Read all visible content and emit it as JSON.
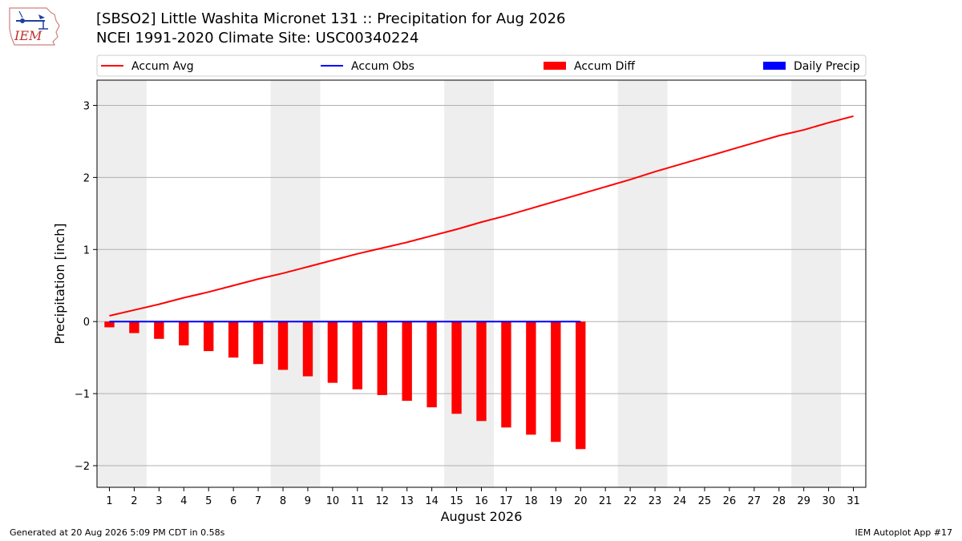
{
  "header": {
    "title_line1": "[SBSO2] Little Washita Micronet 131 :: Precipitation for Aug 2026",
    "title_line2": "NCEI 1991-2020 Climate Site: USC00340224",
    "logo_text": "IEM"
  },
  "footer": {
    "generated": "Generated at 20 Aug 2026 5:09 PM CDT in 0.58s",
    "app": "IEM Autoplot App #17"
  },
  "colors": {
    "accum_avg": "#ff0000",
    "accum_obs": "#0000ff",
    "accum_diff": "#ff0000",
    "daily_precip": "#0000ff",
    "weekend_band": "#eeeeee",
    "grid": "#b0b0b0"
  },
  "chart_data": {
    "type": "bar",
    "xlabel": "August 2026",
    "ylabel": "Precipitation [inch]",
    "xlim": [
      0.5,
      31.5
    ],
    "ylim": [
      -2.3,
      3.35
    ],
    "yticks": [
      -2,
      -1,
      0,
      1,
      2,
      3
    ],
    "ytick_labels": [
      "−2",
      "−1",
      "0",
      "1",
      "2",
      "3"
    ],
    "x": [
      1,
      2,
      3,
      4,
      5,
      6,
      7,
      8,
      9,
      10,
      11,
      12,
      13,
      14,
      15,
      16,
      17,
      18,
      19,
      20,
      21,
      22,
      23,
      24,
      25,
      26,
      27,
      28,
      29,
      30,
      31
    ],
    "grid": "horizontal",
    "legend_position": "top",
    "legend": [
      "Accum Avg",
      "Accum Obs",
      "Accum Diff",
      "Daily Precip"
    ],
    "weekend_bands": [
      [
        1,
        2
      ],
      [
        8,
        9
      ],
      [
        15,
        16
      ],
      [
        22,
        23
      ],
      [
        29,
        30
      ]
    ],
    "series": [
      {
        "name": "Accum Avg",
        "type": "line",
        "x": [
          1,
          2,
          3,
          4,
          5,
          6,
          7,
          8,
          9,
          10,
          11,
          12,
          13,
          14,
          15,
          16,
          17,
          18,
          19,
          20,
          21,
          22,
          23,
          24,
          25,
          26,
          27,
          28,
          29,
          30,
          31
        ],
        "values": [
          0.08,
          0.16,
          0.24,
          0.33,
          0.41,
          0.5,
          0.59,
          0.67,
          0.76,
          0.85,
          0.94,
          1.02,
          1.1,
          1.19,
          1.28,
          1.38,
          1.47,
          1.57,
          1.67,
          1.77,
          1.87,
          1.97,
          2.08,
          2.18,
          2.28,
          2.38,
          2.48,
          2.58,
          2.66,
          2.76,
          2.85
        ]
      },
      {
        "name": "Accum Obs",
        "type": "line",
        "x": [
          1,
          2,
          3,
          4,
          5,
          6,
          7,
          8,
          9,
          10,
          11,
          12,
          13,
          14,
          15,
          16,
          17,
          18,
          19,
          20
        ],
        "values": [
          0,
          0,
          0,
          0,
          0,
          0,
          0,
          0,
          0,
          0,
          0,
          0,
          0,
          0,
          0,
          0,
          0,
          0,
          0,
          0
        ]
      },
      {
        "name": "Accum Diff",
        "type": "bar",
        "x": [
          1,
          2,
          3,
          4,
          5,
          6,
          7,
          8,
          9,
          10,
          11,
          12,
          13,
          14,
          15,
          16,
          17,
          18,
          19,
          20
        ],
        "values": [
          -0.08,
          -0.16,
          -0.24,
          -0.33,
          -0.41,
          -0.5,
          -0.59,
          -0.67,
          -0.76,
          -0.85,
          -0.94,
          -1.02,
          -1.1,
          -1.19,
          -1.28,
          -1.38,
          -1.47,
          -1.57,
          -1.67,
          -1.77
        ]
      },
      {
        "name": "Daily Precip",
        "type": "bar",
        "x": [
          1,
          2,
          3,
          4,
          5,
          6,
          7,
          8,
          9,
          10,
          11,
          12,
          13,
          14,
          15,
          16,
          17,
          18,
          19,
          20
        ],
        "values": [
          0,
          0,
          0,
          0,
          0,
          0,
          0,
          0,
          0,
          0,
          0,
          0,
          0,
          0,
          0,
          0,
          0,
          0,
          0,
          0
        ]
      }
    ]
  }
}
